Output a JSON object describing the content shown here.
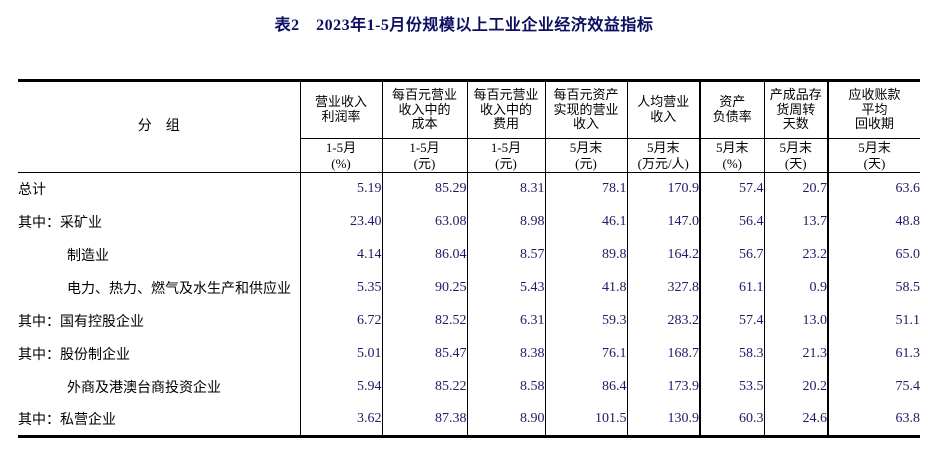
{
  "page": {
    "title": "表2　2023年1-5月份规模以上工业企业经济效益指标"
  },
  "table": {
    "group_header": "分　组",
    "columns": [
      {
        "title": "营业收入\n利润率",
        "period": "1-5月",
        "unit": "(%)"
      },
      {
        "title": "每百元营业\n收入中的\n成本",
        "period": "1-5月",
        "unit": "(元)"
      },
      {
        "title": "每百元营业\n收入中的\n费用",
        "period": "1-5月",
        "unit": "(元)"
      },
      {
        "title": "每百元资产\n实现的营业\n收入",
        "period": "5月末",
        "unit": "(元)"
      },
      {
        "title": "人均营业\n收入",
        "period": "5月末",
        "unit": "(万元/人)"
      },
      {
        "title": "资产\n负债率",
        "period": "5月末",
        "unit": "(%)"
      },
      {
        "title": "产成品存\n货周转\n天数",
        "period": "5月末",
        "unit": "(天)"
      },
      {
        "title": "应收账款\n平均\n回收期",
        "period": "5月末",
        "unit": "(天)"
      }
    ],
    "rows": [
      {
        "label": "总计",
        "indent": false,
        "values": [
          "5.19",
          "85.29",
          "8.31",
          "78.1",
          "170.9",
          "57.4",
          "20.7",
          "63.6"
        ]
      },
      {
        "label": "其中：采矿业",
        "indent": false,
        "values": [
          "23.40",
          "63.08",
          "8.98",
          "46.1",
          "147.0",
          "56.4",
          "13.7",
          "48.8"
        ]
      },
      {
        "label": "制造业",
        "indent": true,
        "values": [
          "4.14",
          "86.04",
          "8.57",
          "89.8",
          "164.2",
          "56.7",
          "23.2",
          "65.0"
        ]
      },
      {
        "label": "电力、热力、燃气及水生产和供应业",
        "indent": true,
        "values": [
          "5.35",
          "90.25",
          "5.43",
          "41.8",
          "327.8",
          "61.1",
          "0.9",
          "58.5"
        ]
      },
      {
        "label": "其中：国有控股企业",
        "indent": false,
        "values": [
          "6.72",
          "82.52",
          "6.31",
          "59.3",
          "283.2",
          "57.4",
          "13.0",
          "51.1"
        ]
      },
      {
        "label": "其中：股份制企业",
        "indent": false,
        "values": [
          "5.01",
          "85.47",
          "8.38",
          "76.1",
          "168.7",
          "58.3",
          "21.3",
          "61.3"
        ]
      },
      {
        "label": "外商及港澳台商投资企业",
        "indent": true,
        "values": [
          "5.94",
          "85.22",
          "8.58",
          "86.4",
          "173.9",
          "53.5",
          "20.2",
          "75.4"
        ]
      },
      {
        "label": "其中：私营企业",
        "indent": false,
        "values": [
          "3.62",
          "87.38",
          "8.90",
          "101.5",
          "130.9",
          "60.3",
          "24.6",
          "63.8"
        ]
      }
    ],
    "colors": {
      "title": "#0d0d62",
      "number": "#1c1c66",
      "border": "#000000"
    }
  }
}
